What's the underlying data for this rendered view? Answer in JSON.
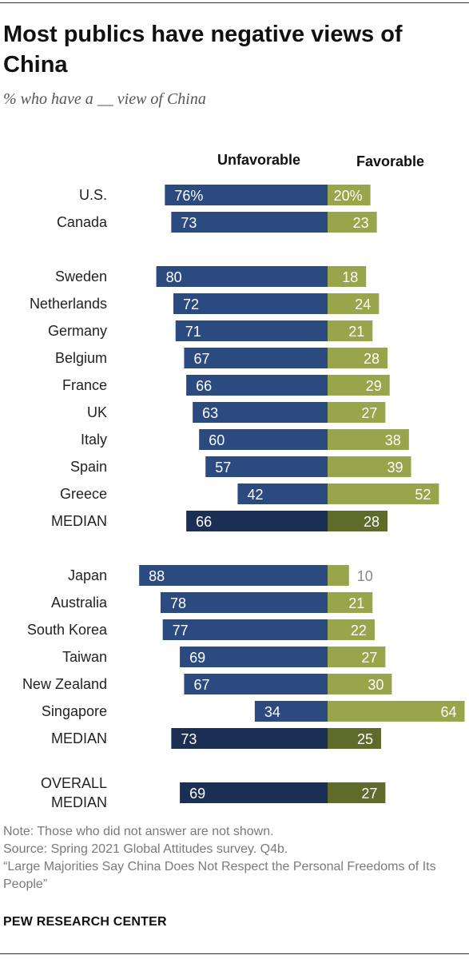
{
  "title": "Most publics have negative views of China",
  "subtitle": "% who have a __ view of China",
  "notes": [
    "Note: Those who did not answer are not shown.",
    "Source: Spring 2021 Global Attitudes survey. Q4b.",
    "“Large Majorities Say China Does Not Respect the Personal Freedoms of Its People”"
  ],
  "credit": "PEW RESEARCH CENTER",
  "colors": {
    "unfavorable": "#2b4a80",
    "favorable": "#98a54a",
    "median_unfavorable": "#1b2f54",
    "median_favorable": "#5e6b2b",
    "label_outside": "#888888"
  },
  "chart_data": {
    "type": "bar",
    "orientation": "horizontal-diverging",
    "series": [
      {
        "name": "Unfavorable",
        "key": "unfavorable"
      },
      {
        "name": "Favorable",
        "key": "favorable"
      }
    ],
    "rows": [
      {
        "label": "U.S.",
        "unfavorable": 76,
        "favorable": 20,
        "unfavorable_label": "76%",
        "favorable_label": "20%",
        "median": false
      },
      {
        "label": "Canada",
        "unfavorable": 73,
        "favorable": 23,
        "unfavorable_label": "73",
        "favorable_label": "23",
        "median": false
      },
      {
        "gap": true
      },
      {
        "label": "Sweden",
        "unfavorable": 80,
        "favorable": 18,
        "unfavorable_label": "80",
        "favorable_label": "18",
        "median": false
      },
      {
        "label": "Netherlands",
        "unfavorable": 72,
        "favorable": 24,
        "unfavorable_label": "72",
        "favorable_label": "24",
        "median": false
      },
      {
        "label": "Germany",
        "unfavorable": 71,
        "favorable": 21,
        "unfavorable_label": "71",
        "favorable_label": "21",
        "median": false
      },
      {
        "label": "Belgium",
        "unfavorable": 67,
        "favorable": 28,
        "unfavorable_label": "67",
        "favorable_label": "28",
        "median": false
      },
      {
        "label": "France",
        "unfavorable": 66,
        "favorable": 29,
        "unfavorable_label": "66",
        "favorable_label": "29",
        "median": false
      },
      {
        "label": "UK",
        "unfavorable": 63,
        "favorable": 27,
        "unfavorable_label": "63",
        "favorable_label": "27",
        "median": false
      },
      {
        "label": "Italy",
        "unfavorable": 60,
        "favorable": 38,
        "unfavorable_label": "60",
        "favorable_label": "38",
        "median": false
      },
      {
        "label": "Spain",
        "unfavorable": 57,
        "favorable": 39,
        "unfavorable_label": "57",
        "favorable_label": "39",
        "median": false
      },
      {
        "label": "Greece",
        "unfavorable": 42,
        "favorable": 52,
        "unfavorable_label": "42",
        "favorable_label": "52",
        "median": false
      },
      {
        "label": "MEDIAN",
        "unfavorable": 66,
        "favorable": 28,
        "unfavorable_label": "66",
        "favorable_label": "28",
        "median": true
      },
      {
        "gap": true
      },
      {
        "label": "Japan",
        "unfavorable": 88,
        "favorable": 10,
        "unfavorable_label": "88",
        "favorable_label": "10",
        "median": false
      },
      {
        "label": "Australia",
        "unfavorable": 78,
        "favorable": 21,
        "unfavorable_label": "78",
        "favorable_label": "21",
        "median": false
      },
      {
        "label": "South Korea",
        "unfavorable": 77,
        "favorable": 22,
        "unfavorable_label": "77",
        "favorable_label": "22",
        "median": false
      },
      {
        "label": "Taiwan",
        "unfavorable": 69,
        "favorable": 27,
        "unfavorable_label": "69",
        "favorable_label": "27",
        "median": false
      },
      {
        "label": "New Zealand",
        "unfavorable": 67,
        "favorable": 30,
        "unfavorable_label": "67",
        "favorable_label": "30",
        "median": false
      },
      {
        "label": "Singapore",
        "unfavorable": 34,
        "favorable": 64,
        "unfavorable_label": "34",
        "favorable_label": "64",
        "median": false
      },
      {
        "label": "MEDIAN",
        "unfavorable": 73,
        "favorable": 25,
        "unfavorable_label": "73",
        "favorable_label": "25",
        "median": true
      },
      {
        "gap": true
      },
      {
        "label": "OVERALL MEDIAN",
        "label_lines": [
          "OVERALL",
          "MEDIAN"
        ],
        "unfavorable": 69,
        "favorable": 27,
        "unfavorable_label": "69",
        "favorable_label": "27",
        "median": true
      }
    ]
  }
}
